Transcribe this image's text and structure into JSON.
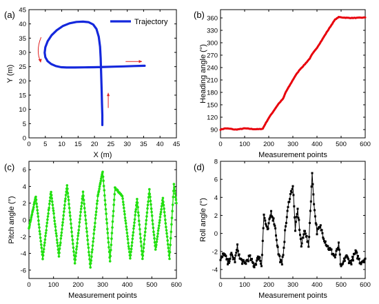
{
  "colors": {
    "trajectory": "#1428dc",
    "heading": "#e8000b",
    "pitch": "#22e010",
    "roll": "#000000",
    "arrow": "#e02020"
  },
  "chart_data": [
    {
      "panel": "(a)",
      "type": "line",
      "xlabel": "X (m)",
      "ylabel": "Y (m)",
      "xlim": [
        0,
        45
      ],
      "ylim": [
        0,
        45
      ],
      "xticks": [
        0,
        5,
        10,
        15,
        20,
        25,
        30,
        35,
        40,
        45
      ],
      "yticks": [
        0,
        5,
        10,
        15,
        20,
        25,
        30,
        35,
        40,
        45
      ],
      "legend": "top-right",
      "series": [
        {
          "name": "Trajectory",
          "x": [
            22.4,
            22.4,
            22.3,
            22.2,
            22.1,
            22.0,
            21.9,
            21.7,
            21.3,
            20.6,
            19.6,
            18.2,
            16.5,
            14.5,
            12.4,
            10.4,
            8.5,
            6.9,
            5.7,
            5.0,
            4.8,
            5.0,
            5.7,
            6.8,
            8.2,
            9.8,
            11.5,
            14.0,
            17.0,
            20.0,
            23.0,
            26.0,
            29.0,
            32.0,
            35.3
          ],
          "y": [
            4.5,
            8.0,
            12.0,
            16.0,
            20.0,
            24.0,
            28.0,
            32.0,
            35.5,
            38.2,
            39.8,
            40.6,
            40.8,
            40.7,
            40.2,
            39.3,
            37.8,
            36.0,
            33.9,
            31.8,
            29.9,
            28.3,
            26.9,
            25.9,
            25.2,
            24.8,
            24.7,
            24.7,
            24.75,
            24.8,
            24.9,
            25.0,
            25.1,
            25.2,
            25.3
          ]
        }
      ],
      "annotations": [
        "direction arrows (red)"
      ]
    },
    {
      "panel": "(b)",
      "type": "line",
      "xlabel": "Measurement points",
      "ylabel": "Heading angle (°)",
      "xlim": [
        0,
        600
      ],
      "ylim": [
        70,
        380
      ],
      "xticks": [
        0,
        100,
        200,
        300,
        400,
        500,
        600
      ],
      "yticks": [
        90,
        120,
        150,
        180,
        210,
        240,
        270,
        300,
        330,
        360
      ],
      "series": [
        {
          "x": [
            0,
            20,
            40,
            60,
            80,
            100,
            120,
            140,
            160,
            175,
            185,
            200,
            220,
            240,
            260,
            270,
            290,
            310,
            330,
            350,
            370,
            380,
            400,
            420,
            440,
            460,
            475,
            490,
            510,
            530,
            560,
            600
          ],
          "y": [
            90,
            93,
            92,
            90,
            91,
            93,
            92,
            91,
            91,
            92,
            103,
            118,
            135,
            152,
            165,
            180,
            200,
            220,
            236,
            248,
            262,
            272,
            288,
            306,
            325,
            343,
            356,
            362,
            361,
            360,
            360,
            361
          ]
        }
      ]
    },
    {
      "panel": "(c)",
      "type": "line",
      "xlabel": "Measurement points",
      "ylabel": "Pitch angle (°)",
      "xlim": [
        0,
        600
      ],
      "ylim": [
        -7,
        7
      ],
      "xticks": [
        0,
        100,
        200,
        300,
        400,
        500,
        600
      ],
      "yticks": [
        -6,
        -4,
        -2,
        0,
        2,
        4,
        6
      ],
      "series": [
        {
          "x": [
            0,
            28,
            56,
            90,
            122,
            155,
            187,
            220,
            250,
            280,
            300,
            330,
            350,
            380,
            412,
            440,
            462,
            490,
            515,
            545,
            572,
            590,
            600
          ],
          "y": [
            -1,
            2.8,
            -4.6,
            3.4,
            -4.3,
            4.2,
            -5.2,
            3.3,
            -5.7,
            2.8,
            5.8,
            -5.0,
            3.8,
            2.9,
            -4.6,
            2.5,
            -4.7,
            3.6,
            -3.6,
            2.6,
            -4.6,
            4.3,
            2.0
          ]
        }
      ]
    },
    {
      "panel": "(d)",
      "type": "line",
      "xlabel": "Measurement points",
      "ylabel": "Roll angle (°)",
      "xlim": [
        0,
        600
      ],
      "ylim": [
        -5,
        8
      ],
      "xticks": [
        0,
        100,
        200,
        300,
        400,
        500,
        600
      ],
      "yticks": [
        -4,
        -2,
        0,
        2,
        4,
        6,
        8
      ],
      "series": [
        {
          "x": [
            0,
            15,
            30,
            45,
            60,
            70,
            80,
            100,
            120,
            140,
            160,
            170,
            180,
            195,
            210,
            225,
            240,
            255,
            270,
            285,
            300,
            310,
            320,
            335,
            350,
            365,
            380,
            390,
            400,
            415,
            430,
            445,
            460,
            475,
            490,
            500,
            520,
            540,
            560,
            580,
            600
          ],
          "y": [
            -3.0,
            -2.2,
            -3.3,
            -2.4,
            -3.0,
            -1.5,
            -2.8,
            -3.4,
            -2.6,
            -3.6,
            -2.5,
            -3.5,
            2.0,
            0.2,
            2.4,
            1.0,
            -2.2,
            -3.6,
            0.8,
            3.8,
            5.3,
            0.5,
            2.6,
            -1.4,
            0.5,
            -1.5,
            6.5,
            2.5,
            0.2,
            0.7,
            -0.6,
            -1.5,
            -2.0,
            -2.6,
            -1.3,
            -3.9,
            -2.5,
            -3.3,
            -2.1,
            -3.2,
            -2.8
          ]
        }
      ]
    }
  ]
}
